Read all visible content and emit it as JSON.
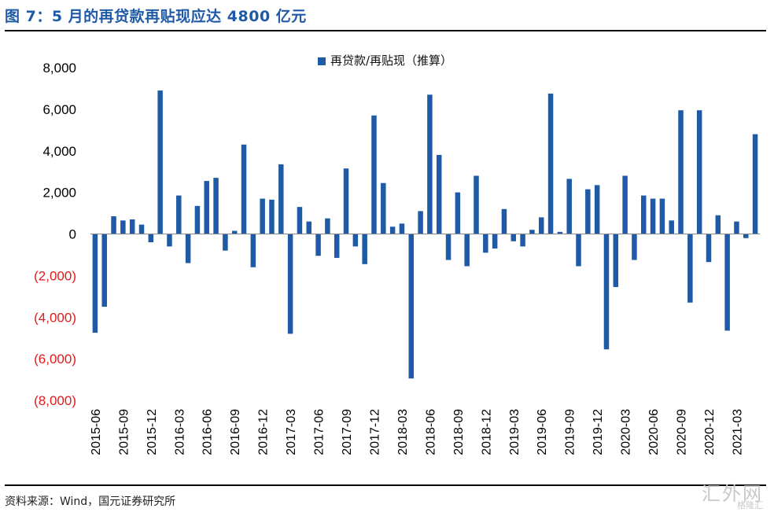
{
  "title": "图 7：5 月的再贷款再贴现应达 4800 亿元",
  "source": "资料来源：Wind，国元证券研究所",
  "watermark": "汇外网",
  "watermark_sub": "格隆汇",
  "colors": {
    "bar": "#1f5aa6",
    "negative_label": "#e31a1c",
    "positive_label": "#000000"
  },
  "chart_data": {
    "type": "bar",
    "title": "",
    "legend": [
      "再贷款/再贴现（推算）"
    ],
    "ylim": [
      -8000,
      8000
    ],
    "yticks": [
      8000,
      6000,
      4000,
      2000,
      0,
      -2000,
      -4000,
      -6000,
      -8000
    ],
    "ytick_labels": [
      "8,000",
      "6,000",
      "4,000",
      "2,000",
      "0",
      "(2,000)",
      "(4,000)",
      "(6,000)",
      "(8,000)"
    ],
    "xtick_labels": [
      "2015-06",
      "2015-09",
      "2015-12",
      "2016-03",
      "2016-06",
      "2016-09",
      "2016-12",
      "2017-03",
      "2017-06",
      "2017-09",
      "2017-12",
      "2018-03",
      "2018-06",
      "2018-09",
      "2018-12",
      "2019-03",
      "2019-06",
      "2019-09",
      "2019-12",
      "2020-03",
      "2020-06",
      "2020-09",
      "2020-12",
      "2021-03"
    ],
    "categories": [
      "2015-06",
      "2015-07",
      "2015-08",
      "2015-09",
      "2015-10",
      "2015-11",
      "2015-12",
      "2016-01",
      "2016-02",
      "2016-03",
      "2016-04",
      "2016-05",
      "2016-06",
      "2016-07",
      "2016-08",
      "2016-09",
      "2016-10",
      "2016-11",
      "2016-12",
      "2017-01",
      "2017-02",
      "2017-03",
      "2017-04",
      "2017-05",
      "2017-06",
      "2017-07",
      "2017-08",
      "2017-09",
      "2017-10",
      "2017-11",
      "2017-12",
      "2018-01",
      "2018-02",
      "2018-03",
      "2018-04",
      "2018-05",
      "2018-06",
      "2018-07",
      "2018-08",
      "2018-09",
      "2018-10",
      "2018-11",
      "2018-12",
      "2019-01",
      "2019-02",
      "2019-03",
      "2019-04",
      "2019-05",
      "2019-06",
      "2019-07",
      "2019-08",
      "2019-09",
      "2019-10",
      "2019-11",
      "2019-12",
      "2020-01",
      "2020-02",
      "2020-03",
      "2020-04",
      "2020-05",
      "2020-06",
      "2020-07",
      "2020-08",
      "2020-09",
      "2020-10",
      "2020-11",
      "2020-12",
      "2021-01",
      "2021-02",
      "2021-03",
      "2021-04",
      "2021-05"
    ],
    "series": [
      {
        "name": "再贷款/再贴现（推算）",
        "values": [
          -4750,
          -3500,
          850,
          650,
          700,
          450,
          -400,
          6900,
          -600,
          1850,
          -1400,
          1350,
          2550,
          2700,
          -800,
          150,
          4300,
          -1600,
          1700,
          1650,
          3350,
          -4800,
          1300,
          600,
          -1050,
          750,
          -1150,
          3150,
          -600,
          -1450,
          5700,
          2450,
          350,
          500,
          -6950,
          1100,
          6700,
          3800,
          -1250,
          2000,
          -1550,
          2800,
          -900,
          -700,
          1200,
          -350,
          -600,
          200,
          800,
          6750,
          100,
          2650,
          -1550,
          2150,
          2350,
          -5550,
          -2550,
          2800,
          -1250,
          1850,
          1700,
          1700,
          650,
          5950,
          -3300,
          5950,
          -1350,
          900,
          -4650,
          600,
          -200,
          4800
        ]
      }
    ]
  }
}
